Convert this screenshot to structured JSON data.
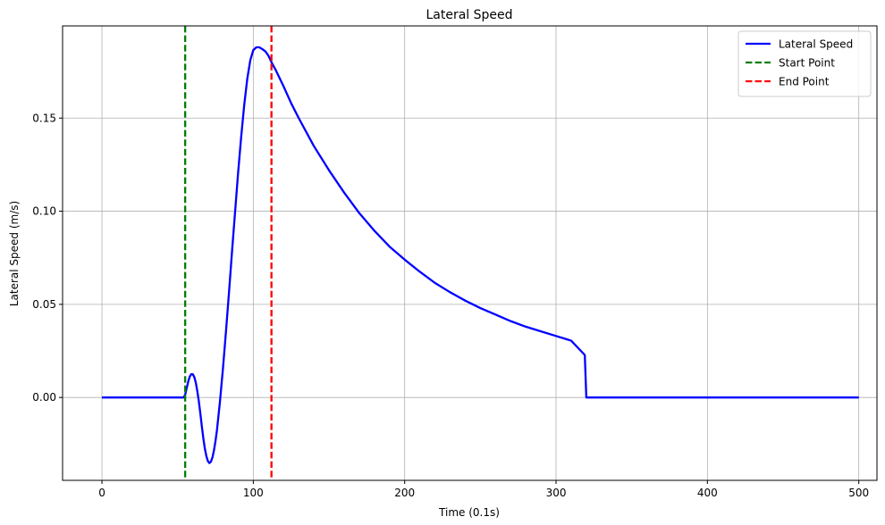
{
  "chart_data": {
    "type": "line",
    "title": "Lateral Speed",
    "xlabel": "Time (0.1s)",
    "ylabel": "Lateral Speed (m/s)",
    "xlim": [
      -26,
      512
    ],
    "ylim": [
      -0.0445,
      0.1995
    ],
    "x_ticks": [
      0,
      100,
      200,
      300,
      400,
      500
    ],
    "x_tick_labels": [
      "0",
      "100",
      "200",
      "300",
      "400",
      "500"
    ],
    "y_ticks": [
      0.0,
      0.05,
      0.1,
      0.15
    ],
    "y_tick_labels": [
      "0.00",
      "0.05",
      "0.10",
      "0.15"
    ],
    "grid": true,
    "legend_position": "top-right",
    "series": [
      {
        "name": "Lateral Speed",
        "color": "#0000ff",
        "style": "solid",
        "x": [
          0,
          54,
          55,
          56,
          57,
          58,
          59,
          60,
          61,
          62,
          63,
          64,
          65,
          66,
          67,
          68,
          69,
          70,
          71,
          72,
          73,
          74,
          75,
          76,
          78,
          80,
          82,
          84,
          86,
          88,
          90,
          92,
          94,
          96,
          98,
          100,
          102,
          104,
          106,
          108,
          110,
          112,
          115,
          120,
          125,
          130,
          140,
          150,
          160,
          170,
          180,
          190,
          200,
          210,
          220,
          230,
          240,
          250,
          260,
          270,
          280,
          290,
          300,
          310,
          319,
          320,
          330,
          400,
          500
        ],
        "y": [
          0,
          0,
          0.0015,
          0.005,
          0.0085,
          0.0112,
          0.0125,
          0.0125,
          0.011,
          0.008,
          0.0035,
          -0.002,
          -0.0085,
          -0.0155,
          -0.022,
          -0.0275,
          -0.0315,
          -0.0342,
          -0.0352,
          -0.0345,
          -0.0322,
          -0.0285,
          -0.0235,
          -0.0175,
          -0.002,
          0.016,
          0.036,
          0.057,
          0.079,
          0.1,
          0.121,
          0.14,
          0.157,
          0.171,
          0.181,
          0.1865,
          0.188,
          0.188,
          0.187,
          0.1858,
          0.1835,
          0.18,
          0.1755,
          0.167,
          0.158,
          0.15,
          0.135,
          0.122,
          0.11,
          0.099,
          0.0895,
          0.081,
          0.074,
          0.0675,
          0.0615,
          0.0565,
          0.052,
          0.048,
          0.0445,
          0.041,
          0.038,
          0.0355,
          0.033,
          0.0305,
          0.0228,
          0.0,
          0.0,
          0.0,
          0.0
        ]
      },
      {
        "name": "Start Point",
        "color": "#008000",
        "style": "dashed",
        "vline_x": 55
      },
      {
        "name": "End Point",
        "color": "#ff0000",
        "style": "dashed",
        "vline_x": 112
      }
    ]
  }
}
